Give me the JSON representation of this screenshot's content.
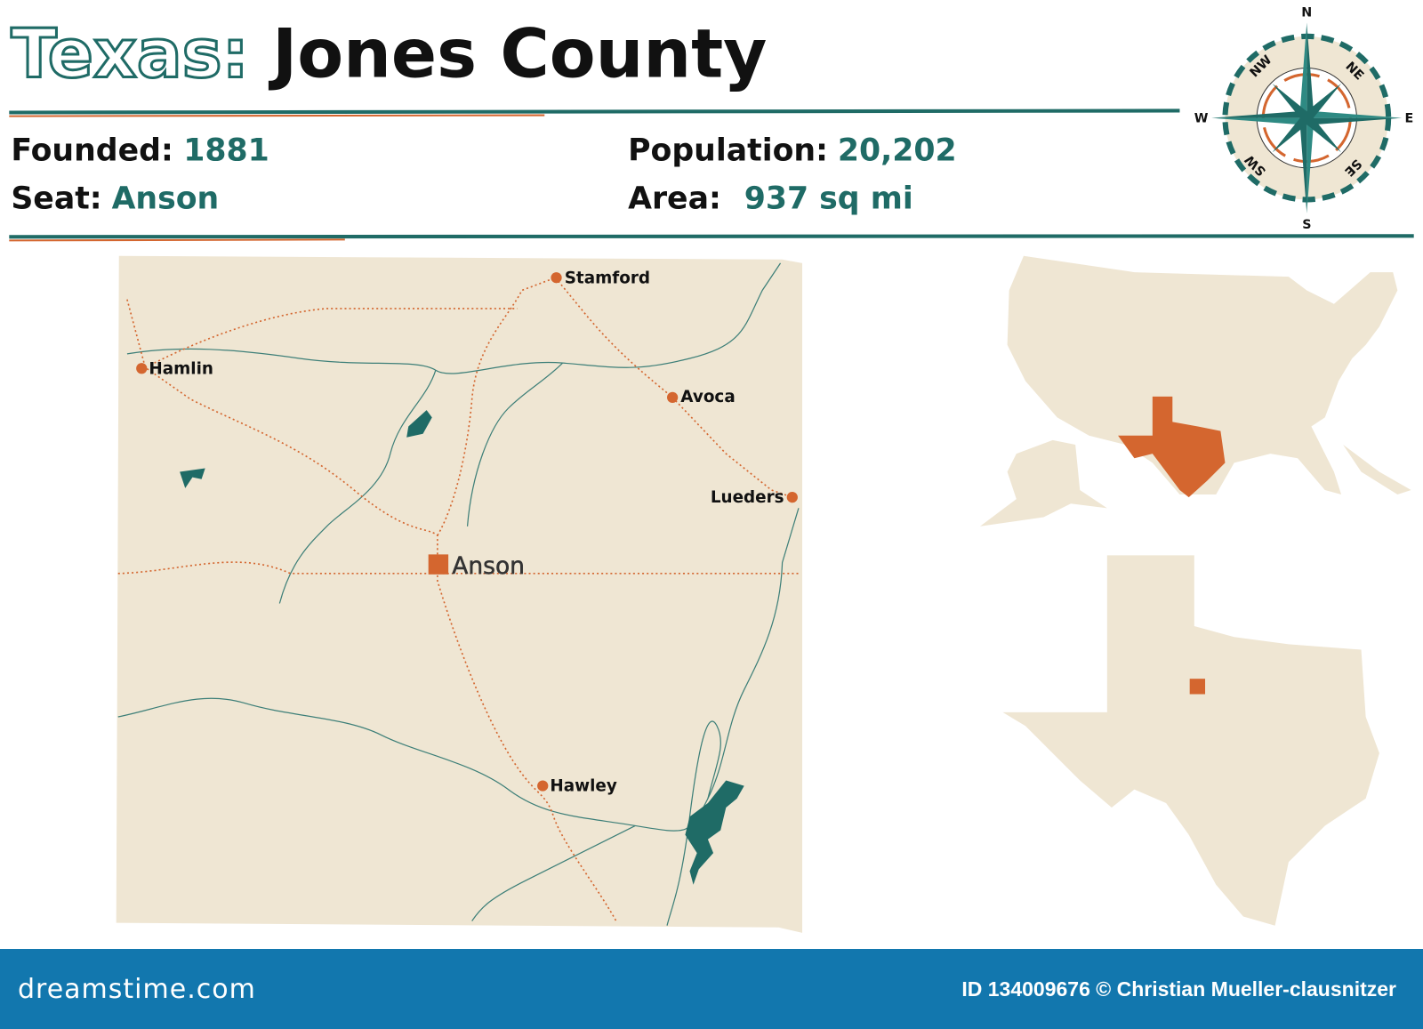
{
  "title": {
    "state": "Texas:",
    "county": "Jones County"
  },
  "facts": {
    "founded_label": "Founded:",
    "founded": "1881",
    "seat_label": "Seat:",
    "seat": "Anson",
    "population_label": "Population:",
    "population": "20,202",
    "area_label": "Area:",
    "area": "937 sq mi"
  },
  "compass": {
    "n": "N",
    "s": "S",
    "e": "E",
    "w": "W",
    "ne": "NE",
    "nw": "NW",
    "se": "SE",
    "sw": "SW"
  },
  "map": {
    "seat": "Anson",
    "towns": [
      "Stamford",
      "Hamlin",
      "Avoca",
      "Lueders",
      "Hawley"
    ]
  },
  "colors": {
    "teal": "#1f6b66",
    "orange": "#d4662f",
    "land": "#efe6d3",
    "footer": "#1277ae"
  },
  "footer": {
    "brand": "dreamstime.com",
    "credit": "ID 134009676 © Christian Mueller-clausnitzer"
  }
}
